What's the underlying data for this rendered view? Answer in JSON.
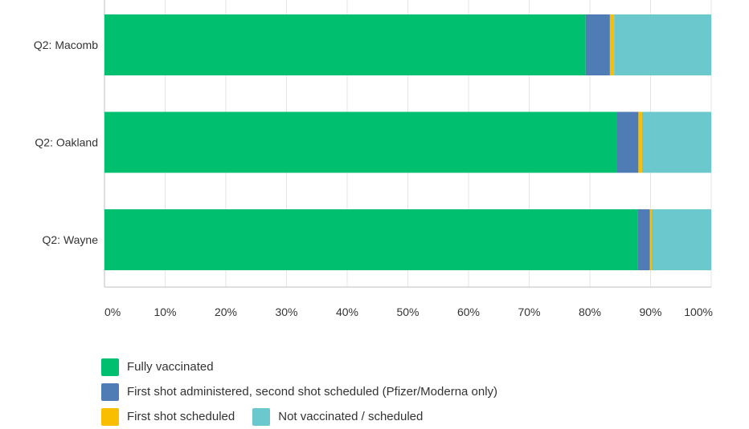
{
  "chart_data": {
    "type": "bar",
    "orientation": "horizontal",
    "stacked": true,
    "categories": [
      "Q2: Macomb",
      "Q2: Oakland",
      "Q2: Wayne"
    ],
    "series": [
      {
        "name": "Fully vaccinated",
        "color": "#00bf6f",
        "values": [
          79.3,
          84.5,
          87.9
        ]
      },
      {
        "name": "First shot administered, second shot scheduled (Pfizer/Moderna only)",
        "color": "#507cb6",
        "values": [
          4.0,
          3.5,
          2.0
        ]
      },
      {
        "name": "First shot scheduled",
        "color": "#f9be00",
        "values": [
          0.7,
          0.6,
          0.3
        ]
      },
      {
        "name": "Not vaccinated / scheduled",
        "color": "#6bc8cd",
        "values": [
          16.0,
          11.4,
          9.8
        ]
      }
    ],
    "xticks": [
      "0%",
      "10%",
      "20%",
      "30%",
      "40%",
      "50%",
      "60%",
      "70%",
      "80%",
      "90%",
      "100%"
    ],
    "xlim": [
      0,
      100
    ],
    "grid": true,
    "legend_position": "bottom"
  }
}
